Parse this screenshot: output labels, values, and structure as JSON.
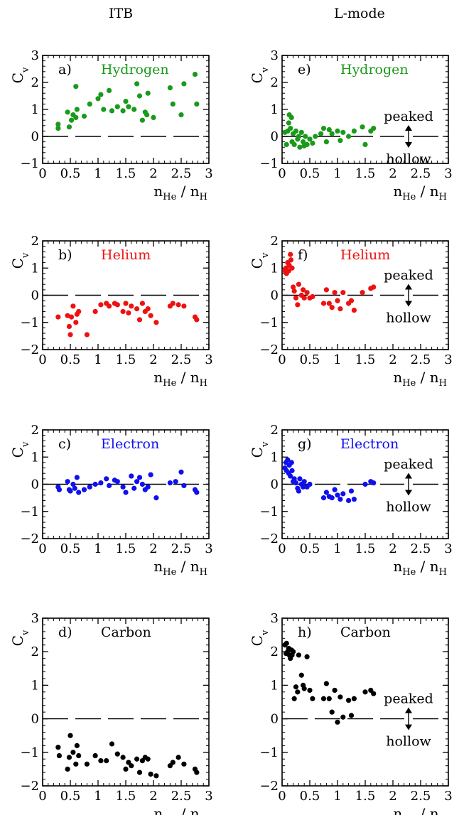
{
  "column_titles": [
    "ITB",
    "L-mode"
  ],
  "annotation": {
    "peaked": "peaked",
    "hollow": "hollow"
  },
  "colors": {
    "hydrogen": "#1a9a1a",
    "helium": "#ee1111",
    "electron": "#1010ee",
    "carbon": "#000000"
  },
  "chart_data": [
    {
      "id": "a",
      "type": "scatter",
      "panel_label": "a)",
      "species": "Hydrogen",
      "color": "#1a9a1a",
      "ylabel": "C_v",
      "xlabel": "n_He / n_H",
      "xlim": [
        0,
        3
      ],
      "ylim": [
        -1,
        3
      ],
      "xticks": [
        "0",
        "0.5",
        "1",
        "1.5",
        "2",
        "2.5",
        "3"
      ],
      "yticks": [
        "−1",
        "0",
        "1",
        "2",
        "3"
      ],
      "ytick_values": [
        -1,
        0,
        1,
        2,
        3
      ],
      "zero_line": "dashed",
      "annotation_arrow": false,
      "x": [
        0.28,
        0.28,
        0.45,
        0.48,
        0.52,
        0.55,
        0.6,
        0.6,
        0.62,
        0.75,
        0.85,
        1.0,
        1.05,
        1.1,
        1.2,
        1.25,
        1.35,
        1.45,
        1.5,
        1.55,
        1.65,
        1.7,
        1.75,
        1.8,
        1.85,
        1.88,
        1.9,
        2.0,
        2.3,
        2.35,
        2.5,
        2.55,
        2.75,
        2.78
      ],
      "y": [
        0.45,
        0.3,
        0.9,
        0.35,
        0.6,
        0.8,
        1.85,
        0.7,
        1.0,
        0.75,
        1.2,
        1.4,
        1.55,
        1.0,
        1.7,
        0.95,
        1.1,
        0.95,
        1.3,
        1.1,
        1.0,
        1.95,
        1.5,
        0.6,
        0.9,
        0.8,
        1.6,
        0.7,
        1.8,
        1.2,
        0.8,
        1.95,
        2.3,
        1.2
      ]
    },
    {
      "id": "b",
      "type": "scatter",
      "panel_label": "b)",
      "species": "Helium",
      "color": "#ee1111",
      "ylabel": "C_v",
      "xlabel": "n_He / n_H",
      "xlim": [
        0,
        3
      ],
      "ylim": [
        -2,
        2
      ],
      "xticks": [
        "0",
        "0.5",
        "1",
        "1.5",
        "2",
        "2.5",
        "3"
      ],
      "yticks": [
        "−2",
        "−1",
        "0",
        "1",
        "2"
      ],
      "ytick_values": [
        -2,
        -1,
        0,
        1,
        2
      ],
      "zero_line": "dashed",
      "annotation_arrow": false,
      "x": [
        0.28,
        0.45,
        0.48,
        0.5,
        0.52,
        0.55,
        0.6,
        0.62,
        0.65,
        0.8,
        0.95,
        1.05,
        1.15,
        1.2,
        1.3,
        1.35,
        1.45,
        1.5,
        1.55,
        1.6,
        1.7,
        1.75,
        1.8,
        1.85,
        1.9,
        1.95,
        2.05,
        2.3,
        2.35,
        2.45,
        2.55,
        2.75,
        2.78
      ],
      "y": [
        -0.8,
        -0.75,
        -1.15,
        -1.45,
        -0.8,
        -0.4,
        -1.0,
        -0.7,
        -0.6,
        -1.45,
        -0.6,
        -0.35,
        -0.3,
        -0.4,
        -0.3,
        -0.35,
        -0.6,
        -0.3,
        -0.65,
        -0.4,
        -0.5,
        -0.9,
        -0.3,
        -0.6,
        -0.5,
        -0.75,
        -1.0,
        -0.4,
        -0.3,
        -0.35,
        -0.4,
        -0.8,
        -0.9
      ]
    },
    {
      "id": "c",
      "type": "scatter",
      "panel_label": "c)",
      "species": "Electron",
      "color": "#1010ee",
      "ylabel": "C_v",
      "xlabel": "n_He / n_H",
      "xlim": [
        0,
        3
      ],
      "ylim": [
        -2,
        2
      ],
      "xticks": [
        "0",
        "0.5",
        "1",
        "1.5",
        "2",
        "2.5",
        "3"
      ],
      "yticks": [
        "−2",
        "−1",
        "0",
        "1",
        "2"
      ],
      "ytick_values": [
        -2,
        -1,
        0,
        1,
        2
      ],
      "zero_line": "dashed",
      "annotation_arrow": false,
      "x": [
        0.28,
        0.3,
        0.45,
        0.48,
        0.5,
        0.55,
        0.58,
        0.62,
        0.65,
        0.75,
        0.85,
        0.95,
        1.05,
        1.15,
        1.2,
        1.3,
        1.35,
        1.45,
        1.5,
        1.6,
        1.65,
        1.7,
        1.75,
        1.8,
        1.85,
        1.9,
        1.95,
        2.05,
        2.3,
        2.4,
        2.5,
        2.55,
        2.75,
        2.78
      ],
      "y": [
        -0.1,
        -0.2,
        0.1,
        -0.2,
        -0.25,
        0.0,
        -0.15,
        0.25,
        -0.3,
        -0.2,
        -0.1,
        0.0,
        0.05,
        0.2,
        -0.05,
        0.15,
        0.1,
        -0.1,
        -0.3,
        0.3,
        -0.15,
        0.1,
        0.25,
        0.0,
        -0.2,
        -0.1,
        0.35,
        -0.5,
        0.05,
        0.1,
        0.45,
        -0.05,
        -0.2,
        -0.3
      ]
    },
    {
      "id": "d",
      "type": "scatter",
      "panel_label": "d)",
      "species": "Carbon",
      "color": "#000000",
      "ylabel": "C_v",
      "xlabel": "n_He / n_H",
      "xlim": [
        0,
        3
      ],
      "ylim": [
        -2,
        3
      ],
      "xticks": [
        "0",
        "0.5",
        "1",
        "1.5",
        "2",
        "2.5",
        "3"
      ],
      "yticks": [
        "−2",
        "−1",
        "0",
        "1",
        "2",
        "3"
      ],
      "ytick_values": [
        -2,
        -1,
        0,
        1,
        2,
        3
      ],
      "zero_line": "dashed",
      "annotation_arrow": false,
      "x": [
        0.28,
        0.3,
        0.45,
        0.48,
        0.5,
        0.55,
        0.6,
        0.62,
        0.65,
        0.8,
        0.95,
        1.05,
        1.15,
        1.25,
        1.35,
        1.45,
        1.5,
        1.55,
        1.6,
        1.7,
        1.75,
        1.8,
        1.85,
        1.9,
        1.95,
        2.05,
        2.3,
        2.35,
        2.45,
        2.55,
        2.75,
        2.78
      ],
      "y": [
        -0.85,
        -1.1,
        -1.5,
        -1.15,
        -0.5,
        -1.0,
        -1.35,
        -0.8,
        -1.1,
        -1.35,
        -1.1,
        -1.25,
        -1.25,
        -0.75,
        -1.05,
        -1.15,
        -1.5,
        -1.3,
        -1.4,
        -1.2,
        -1.6,
        -1.25,
        -1.15,
        -1.2,
        -1.65,
        -1.7,
        -1.4,
        -1.3,
        -1.15,
        -1.35,
        -1.5,
        -1.6
      ]
    },
    {
      "id": "e",
      "type": "scatter",
      "panel_label": "e)",
      "species": "Hydrogen",
      "color": "#1a9a1a",
      "ylabel": "C_v",
      "xlabel": "n_He / n_H",
      "xlim": [
        0,
        3
      ],
      "ylim": [
        -1,
        3
      ],
      "xticks": [
        "0",
        "0.5",
        "1",
        "1.5",
        "2",
        "2.5",
        "3"
      ],
      "yticks": [
        "−1",
        "0",
        "1",
        "2",
        "3"
      ],
      "ytick_values": [
        -1,
        0,
        1,
        2,
        3
      ],
      "zero_line": "dashed",
      "annotation_arrow": true,
      "x": [
        0.05,
        0.08,
        0.1,
        0.12,
        0.13,
        0.15,
        0.17,
        0.18,
        0.2,
        0.22,
        0.25,
        0.28,
        0.3,
        0.32,
        0.35,
        0.38,
        0.4,
        0.42,
        0.45,
        0.5,
        0.55,
        0.6,
        0.7,
        0.75,
        0.8,
        0.85,
        0.9,
        1.0,
        1.05,
        1.1,
        1.2,
        1.3,
        1.45,
        1.5,
        1.6,
        1.65
      ],
      "y": [
        0.15,
        -0.3,
        0.2,
        0.5,
        0.8,
        0.3,
        0.7,
        -0.2,
        0.1,
        -0.3,
        0.2,
        -0.1,
        0.0,
        -0.4,
        0.15,
        -0.2,
        -0.35,
        0.0,
        -0.3,
        -0.1,
        -0.25,
        0.0,
        0.1,
        0.3,
        -0.2,
        0.25,
        0.1,
        0.2,
        -0.15,
        0.15,
        0.0,
        0.2,
        0.35,
        -0.3,
        0.2,
        0.3
      ]
    },
    {
      "id": "f",
      "type": "scatter",
      "panel_label": "f)",
      "species": "Helium",
      "color": "#ee1111",
      "ylabel": "C_v",
      "xlabel": "n_He / n_H",
      "xlim": [
        0,
        3
      ],
      "ylim": [
        -2,
        2
      ],
      "xticks": [
        "0",
        "0.5",
        "1",
        "1.5",
        "2",
        "2.5",
        "3"
      ],
      "yticks": [
        "−2",
        "−1",
        "0",
        "1",
        "2"
      ],
      "ytick_values": [
        -2,
        -1,
        0,
        1,
        2
      ],
      "zero_line": "dashed",
      "annotation_arrow": true,
      "x": [
        0.05,
        0.07,
        0.08,
        0.1,
        0.12,
        0.13,
        0.15,
        0.16,
        0.18,
        0.2,
        0.22,
        0.25,
        0.28,
        0.3,
        0.35,
        0.38,
        0.4,
        0.45,
        0.5,
        0.55,
        0.75,
        0.8,
        0.85,
        0.9,
        0.95,
        1.0,
        1.05,
        1.1,
        1.2,
        1.25,
        1.3,
        1.45,
        1.6,
        1.65
      ],
      "y": [
        0.9,
        1.0,
        0.8,
        1.2,
        0.9,
        1.1,
        1.5,
        1.3,
        1.0,
        0.3,
        0.15,
        -0.1,
        -0.35,
        0.4,
        0.0,
        0.2,
        -0.1,
        0.1,
        -0.1,
        -0.05,
        -0.3,
        0.2,
        -0.3,
        -0.45,
        0.1,
        -0.2,
        -0.5,
        0.1,
        -0.3,
        -0.2,
        -0.55,
        0.1,
        0.25,
        0.3
      ]
    },
    {
      "id": "g",
      "type": "scatter",
      "panel_label": "g)",
      "species": "Electron",
      "color": "#1010ee",
      "ylabel": "C_v",
      "xlabel": "n_He / n_H",
      "xlim": [
        0,
        3
      ],
      "ylim": [
        -2,
        2
      ],
      "xticks": [
        "0",
        "0.5",
        "1",
        "1.5",
        "2",
        "2.5",
        "3"
      ],
      "yticks": [
        "−2",
        "−1",
        "0",
        "1",
        "2"
      ],
      "ytick_values": [
        -2,
        -1,
        0,
        1,
        2
      ],
      "zero_line": "dashed",
      "annotation_arrow": true,
      "x": [
        0.05,
        0.07,
        0.08,
        0.1,
        0.12,
        0.13,
        0.15,
        0.17,
        0.18,
        0.2,
        0.22,
        0.25,
        0.28,
        0.3,
        0.32,
        0.35,
        0.38,
        0.4,
        0.45,
        0.5,
        0.75,
        0.8,
        0.85,
        0.9,
        0.95,
        1.0,
        1.05,
        1.1,
        1.2,
        1.25,
        1.3,
        1.5,
        1.6,
        1.65
      ],
      "y": [
        0.6,
        0.8,
        0.5,
        0.9,
        0.4,
        0.7,
        0.3,
        0.8,
        0.5,
        0.1,
        0.2,
        0.05,
        -0.15,
        -0.25,
        0.2,
        0.0,
        -0.1,
        0.1,
        -0.1,
        0.0,
        -0.5,
        -0.3,
        -0.45,
        -0.5,
        -0.2,
        -0.4,
        -0.55,
        -0.35,
        -0.6,
        -0.25,
        -0.55,
        0.0,
        0.1,
        0.05
      ]
    },
    {
      "id": "h",
      "type": "scatter",
      "panel_label": "h)",
      "species": "Carbon",
      "color": "#000000",
      "ylabel": "C_v",
      "xlabel": "n_He / n_H",
      "xlim": [
        0,
        3
      ],
      "ylim": [
        -2,
        3
      ],
      "xticks": [
        "0",
        "0.5",
        "1",
        "1.5",
        "2",
        "2.5",
        "3"
      ],
      "yticks": [
        "−2",
        "−1",
        "0",
        "1",
        "2",
        "3"
      ],
      "ytick_values": [
        -2,
        -1,
        0,
        1,
        2,
        3
      ],
      "zero_line": "dashed",
      "annotation_arrow": true,
      "x": [
        0.05,
        0.07,
        0.08,
        0.1,
        0.12,
        0.13,
        0.15,
        0.17,
        0.18,
        0.2,
        0.22,
        0.25,
        0.28,
        0.3,
        0.35,
        0.38,
        0.4,
        0.45,
        0.5,
        0.55,
        0.75,
        0.8,
        0.85,
        0.9,
        0.95,
        1.0,
        1.05,
        1.1,
        1.2,
        1.25,
        1.3,
        1.5,
        1.6,
        1.65
      ],
      "y": [
        2.2,
        1.95,
        2.25,
        2.0,
        2.1,
        1.9,
        1.8,
        2.05,
        1.9,
        2.0,
        0.6,
        0.95,
        0.8,
        1.9,
        1.3,
        1.0,
        0.9,
        1.85,
        0.85,
        0.6,
        0.6,
        1.05,
        0.6,
        0.2,
        0.85,
        -0.1,
        0.65,
        0.05,
        0.55,
        0.1,
        0.6,
        0.8,
        0.85,
        0.75
      ]
    }
  ]
}
